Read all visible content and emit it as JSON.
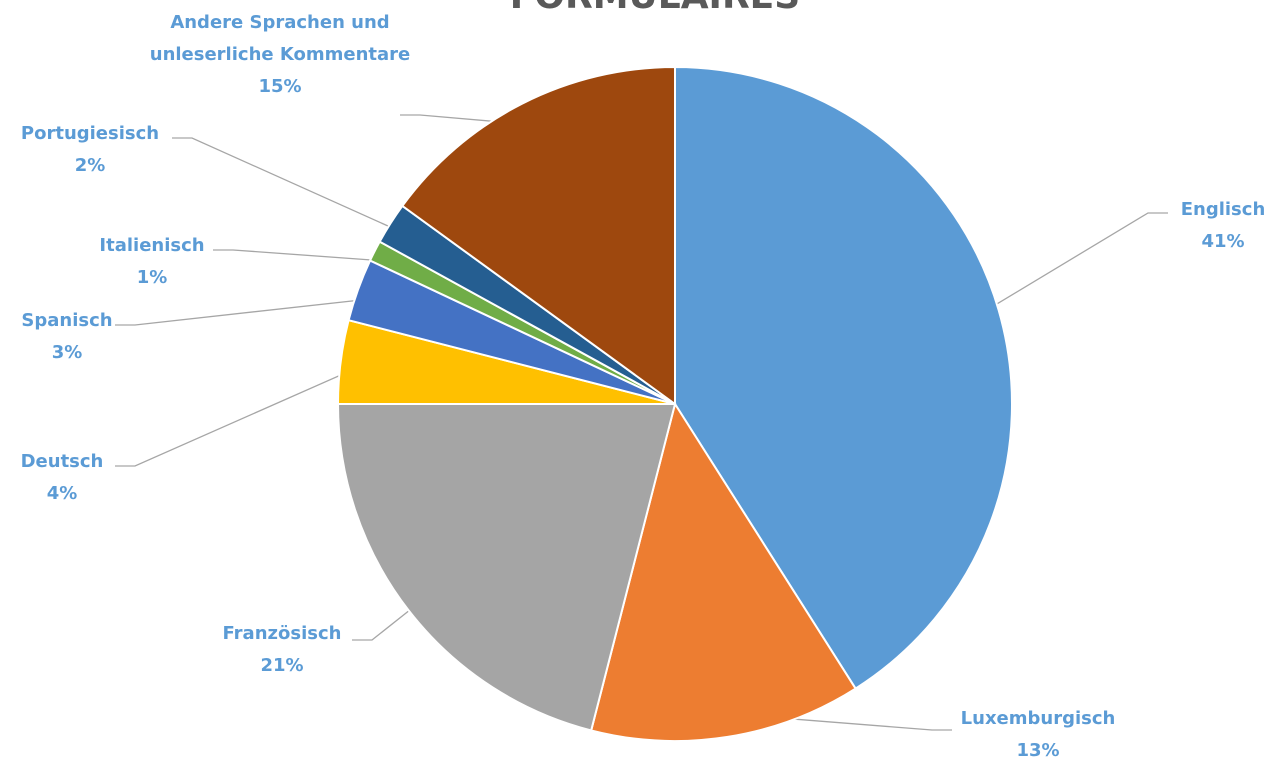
{
  "chart_data": {
    "type": "pie",
    "title": "FORMULAIRES",
    "categories": [
      "Englisch",
      "Luxemburgisch",
      "Französisch",
      "Deutsch",
      "Spanisch",
      "Italienisch",
      "Portugiesisch",
      "Andere Sprachen und unleserliche Kommentare"
    ],
    "values": [
      41,
      13,
      21,
      4,
      3,
      1,
      2,
      15
    ],
    "value_labels": [
      "41%",
      "13%",
      "21%",
      "4%",
      "3%",
      "1%",
      "2%",
      "15%"
    ],
    "colors": [
      "#5b9bd5",
      "#ed7d31",
      "#a5a5a5",
      "#ffc000",
      "#4472c4",
      "#70ad47",
      "#255e91",
      "#9e480e"
    ]
  }
}
